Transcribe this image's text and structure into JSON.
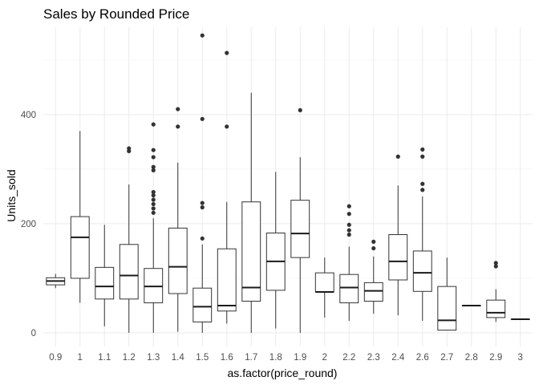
{
  "chart_data": {
    "type": "boxplot",
    "title": "Sales by Rounded Price",
    "xlabel": "as.factor(price_round)",
    "ylabel": "Units_sold",
    "ylim": [
      -25,
      560
    ],
    "y_ticks": [
      0,
      200,
      400
    ],
    "y_minor_ticks": [
      100,
      300,
      500
    ],
    "grid": true,
    "colors": {
      "box_stroke": "#333333",
      "median": "#1a1a1a",
      "grid": "#ebebeb",
      "tick_text": "#4d4d4d"
    },
    "categories": [
      "0.9",
      "1",
      "1.1",
      "1.2",
      "1.3",
      "1.4",
      "1.5",
      "1.6",
      "1.7",
      "1.8",
      "1.9",
      "2",
      "2.2",
      "2.3",
      "2.4",
      "2.6",
      "2.7",
      "2.8",
      "2.9",
      "3"
    ],
    "boxes": [
      {
        "category": "0.9",
        "min": 82,
        "q1": 88,
        "median": 95,
        "q3": 101,
        "max": 108,
        "outliers": []
      },
      {
        "category": "1",
        "min": 55,
        "q1": 100,
        "median": 175,
        "q3": 213,
        "max": 370,
        "outliers": []
      },
      {
        "category": "1.1",
        "min": 12,
        "q1": 62,
        "median": 85,
        "q3": 120,
        "max": 198,
        "outliers": []
      },
      {
        "category": "1.2",
        "min": 0,
        "q1": 62,
        "median": 105,
        "q3": 162,
        "max": 272,
        "outliers": [
          333,
          338
        ]
      },
      {
        "category": "1.3",
        "min": 0,
        "q1": 55,
        "median": 85,
        "q3": 118,
        "max": 210,
        "outliers": [
          220,
          228,
          236,
          244,
          252,
          258,
          298,
          304,
          322,
          335,
          382
        ]
      },
      {
        "category": "1.4",
        "min": 2,
        "q1": 72,
        "median": 121,
        "q3": 192,
        "max": 312,
        "outliers": [
          378,
          410
        ]
      },
      {
        "category": "1.5",
        "min": 0,
        "q1": 20,
        "median": 48,
        "q3": 82,
        "max": 162,
        "outliers": [
          173,
          230,
          238,
          392,
          545
        ]
      },
      {
        "category": "1.6",
        "min": 17,
        "q1": 40,
        "median": 50,
        "q3": 154,
        "max": 240,
        "outliers": [
          378,
          513
        ]
      },
      {
        "category": "1.7",
        "min": 0,
        "q1": 58,
        "median": 83,
        "q3": 240,
        "max": 440,
        "outliers": []
      },
      {
        "category": "1.8",
        "min": 8,
        "q1": 78,
        "median": 131,
        "q3": 183,
        "max": 295,
        "outliers": []
      },
      {
        "category": "1.9",
        "min": 0,
        "q1": 138,
        "median": 182,
        "q3": 243,
        "max": 322,
        "outliers": [
          408
        ]
      },
      {
        "category": "2",
        "min": 28,
        "q1": 75,
        "median": 75,
        "q3": 110,
        "max": 138,
        "outliers": []
      },
      {
        "category": "2.2",
        "min": 22,
        "q1": 55,
        "median": 83,
        "q3": 107,
        "max": 158,
        "outliers": [
          180,
          188,
          198,
          218,
          232
        ]
      },
      {
        "category": "2.3",
        "min": 35,
        "q1": 58,
        "median": 77,
        "q3": 92,
        "max": 140,
        "outliers": [
          155,
          167
        ]
      },
      {
        "category": "2.4",
        "min": 32,
        "q1": 97,
        "median": 131,
        "q3": 180,
        "max": 270,
        "outliers": [
          323
        ]
      },
      {
        "category": "2.6",
        "min": 22,
        "q1": 76,
        "median": 110,
        "q3": 150,
        "max": 250,
        "outliers": [
          262,
          273,
          323,
          336
        ]
      },
      {
        "category": "2.7",
        "min": 5,
        "q1": 5,
        "median": 23,
        "q3": 85,
        "max": 138,
        "outliers": []
      },
      {
        "category": "2.8",
        "min": 50,
        "q1": 50,
        "median": 50,
        "q3": 50,
        "max": 50,
        "outliers": []
      },
      {
        "category": "2.9",
        "min": 20,
        "q1": 28,
        "median": 37,
        "q3": 60,
        "max": 80,
        "outliers": [
          122,
          128
        ]
      },
      {
        "category": "3",
        "min": 25,
        "q1": 25,
        "median": 25,
        "q3": 25,
        "max": 25,
        "outliers": []
      }
    ]
  }
}
